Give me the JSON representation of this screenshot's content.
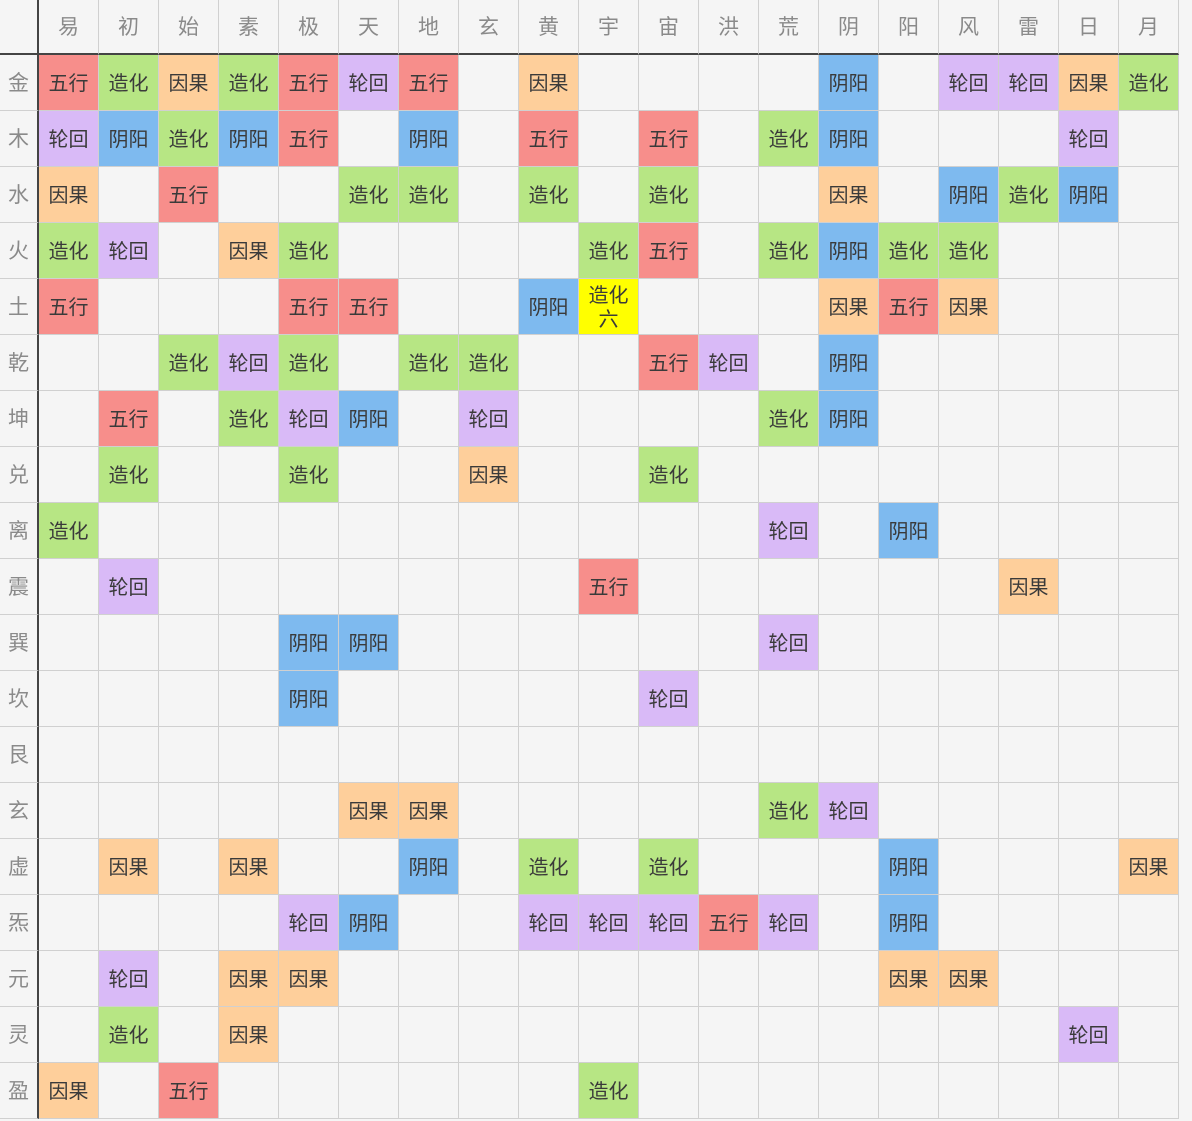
{
  "columns": [
    "易",
    "初",
    "始",
    "素",
    "极",
    "天",
    "地",
    "玄",
    "黄",
    "宇",
    "宙",
    "洪",
    "荒",
    "阴",
    "阳",
    "风",
    "雷",
    "日",
    "月"
  ],
  "rows": [
    "金",
    "木",
    "水",
    "火",
    "土",
    "乾",
    "坤",
    "兑",
    "离",
    "震",
    "巽",
    "坎",
    "艮",
    "玄",
    "虚",
    "炁",
    "元",
    "灵",
    "盈"
  ],
  "colors": {
    "五行": "#f78e8b",
    "造化": "#b7e684",
    "因果": "#fecf9b",
    "轮回": "#d9baf7",
    "阴阳": "#7ebaef",
    "highlight": "#ffff00",
    "empty": "#f5f5f5"
  },
  "grid": [
    [
      "五行",
      "造化",
      "因果",
      "造化",
      "五行",
      "轮回",
      "五行",
      "",
      "因果",
      "",
      "",
      "",
      "",
      "阴阳",
      "",
      "轮回",
      "轮回",
      "因果",
      "造化"
    ],
    [
      "轮回",
      "阴阳",
      "造化",
      "阴阳",
      "五行",
      "",
      "阴阳",
      "",
      "五行",
      "",
      "五行",
      "",
      "造化",
      "阴阳",
      "",
      "",
      "",
      "轮回",
      ""
    ],
    [
      "因果",
      "",
      "五行",
      "",
      "",
      "造化",
      "造化",
      "",
      "造化",
      "",
      "造化",
      "",
      "",
      "因果",
      "",
      "阴阳",
      "造化",
      "阴阳",
      ""
    ],
    [
      "造化",
      "轮回",
      "",
      "因果",
      "造化",
      "",
      "",
      "",
      "",
      "造化",
      "五行",
      "",
      "造化",
      "阴阳",
      "造化",
      "造化",
      "",
      "",
      ""
    ],
    [
      "五行",
      "",
      "",
      "",
      "五行",
      "五行",
      "",
      "",
      "阴阳",
      "造化\n六",
      "",
      "",
      "",
      "因果",
      "五行",
      "因果",
      "",
      "",
      ""
    ],
    [
      "",
      "",
      "造化",
      "轮回",
      "造化",
      "",
      "造化",
      "造化",
      "",
      "",
      "五行",
      "轮回",
      "",
      "阴阳",
      "",
      "",
      "",
      "",
      ""
    ],
    [
      "",
      "五行",
      "",
      "造化",
      "轮回",
      "阴阳",
      "",
      "轮回",
      "",
      "",
      "",
      "",
      "造化",
      "阴阳",
      "",
      "",
      "",
      "",
      ""
    ],
    [
      "",
      "造化",
      "",
      "",
      "造化",
      "",
      "",
      "因果",
      "",
      "",
      "造化",
      "",
      "",
      "",
      "",
      "",
      "",
      "",
      ""
    ],
    [
      "造化",
      "",
      "",
      "",
      "",
      "",
      "",
      "",
      "",
      "",
      "",
      "",
      "轮回",
      "",
      "阴阳",
      "",
      "",
      "",
      ""
    ],
    [
      "",
      "轮回",
      "",
      "",
      "",
      "",
      "",
      "",
      "",
      "五行",
      "",
      "",
      "",
      "",
      "",
      "",
      "因果",
      "",
      ""
    ],
    [
      "",
      "",
      "",
      "",
      "阴阳",
      "阴阳",
      "",
      "",
      "",
      "",
      "",
      "",
      "轮回",
      "",
      "",
      "",
      "",
      "",
      ""
    ],
    [
      "",
      "",
      "",
      "",
      "阴阳",
      "",
      "",
      "",
      "",
      "",
      "轮回",
      "",
      "",
      "",
      "",
      "",
      "",
      "",
      ""
    ],
    [
      "",
      "",
      "",
      "",
      "",
      "",
      "",
      "",
      "",
      "",
      "",
      "",
      "",
      "",
      "",
      "",
      "",
      "",
      ""
    ],
    [
      "",
      "",
      "",
      "",
      "",
      "因果",
      "因果",
      "",
      "",
      "",
      "",
      "",
      "造化",
      "轮回",
      "",
      "",
      "",
      "",
      ""
    ],
    [
      "",
      "因果",
      "",
      "因果",
      "",
      "",
      "阴阳",
      "",
      "造化",
      "",
      "造化",
      "",
      "",
      "",
      "阴阳",
      "",
      "",
      "",
      "因果"
    ],
    [
      "",
      "",
      "",
      "",
      "轮回",
      "阴阳",
      "",
      "",
      "轮回",
      "轮回",
      "轮回",
      "五行",
      "轮回",
      "",
      "阴阳",
      "",
      "",
      "",
      ""
    ],
    [
      "",
      "轮回",
      "",
      "因果",
      "因果",
      "",
      "",
      "",
      "",
      "",
      "",
      "",
      "",
      "",
      "因果",
      "因果",
      "",
      "",
      ""
    ],
    [
      "",
      "造化",
      "",
      "因果",
      "",
      "",
      "",
      "",
      "",
      "",
      "",
      "",
      "",
      "",
      "",
      "",
      "",
      "轮回",
      ""
    ],
    [
      "因果",
      "",
      "五行",
      "",
      "",
      "",
      "",
      "",
      "",
      "造化",
      "",
      "",
      "",
      "",
      "",
      "",
      "",
      "",
      ""
    ]
  ],
  "special": {
    "row": 4,
    "col": 9,
    "color_key": "highlight"
  }
}
